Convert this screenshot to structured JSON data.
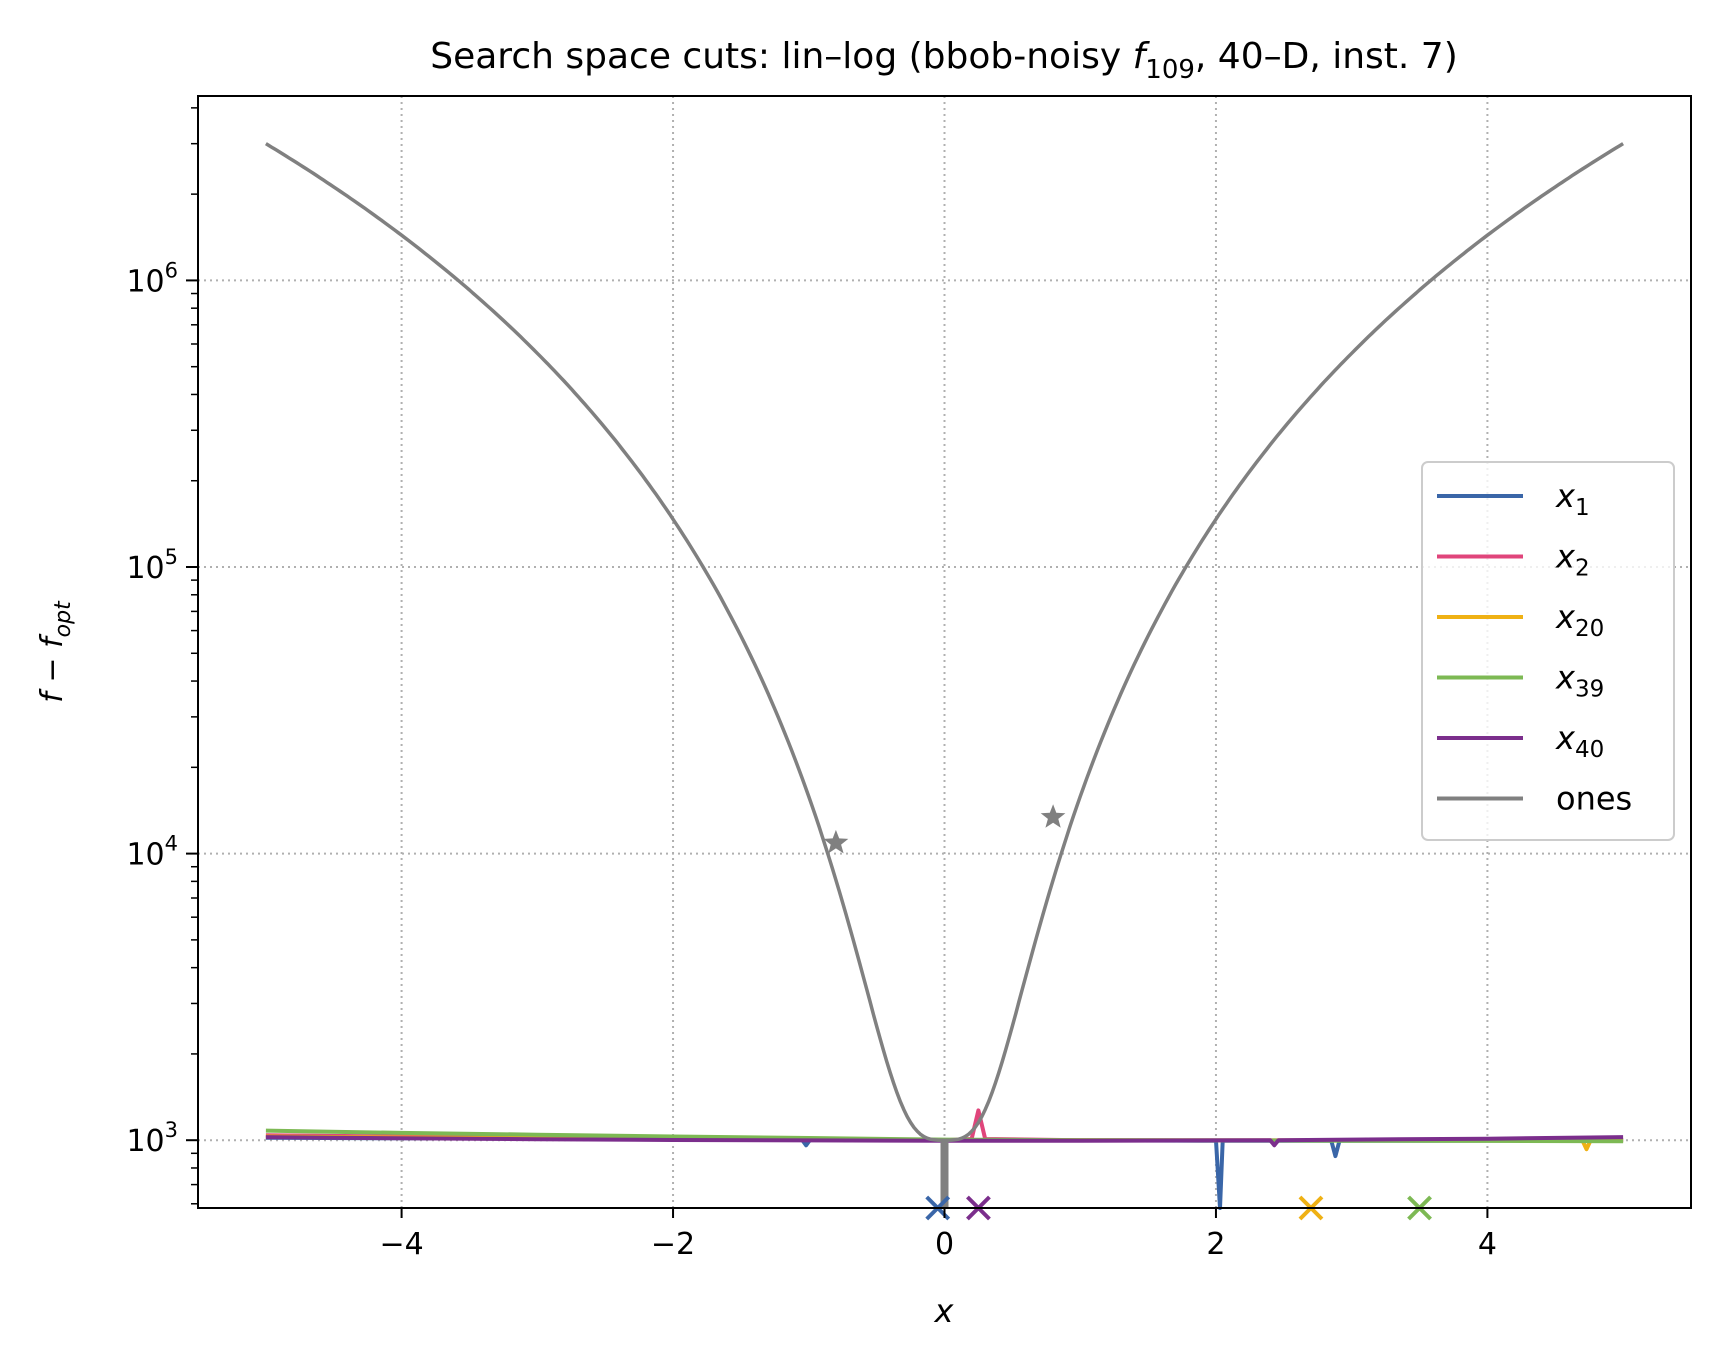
{
  "chart_data": {
    "type": "line",
    "title": "Search space cuts: lin–log (bbob-noisy f109, 40–D, inst. 7)",
    "title_parts": {
      "before": "Search space cuts: lin–log (bbob-noisy ",
      "f": "f",
      "sub": "109",
      "after": ", 40–D, inst. 7)"
    },
    "xlabel": "x",
    "ylabel": "f − f",
    "ylabel_sub": "opt",
    "xscale": "linear",
    "yscale": "log",
    "xlim": [
      -5.5,
      5.5
    ],
    "ylim": [
      580,
      4400000
    ],
    "grid": true,
    "legend_placement": "center-right",
    "x_ticks": [
      {
        "v": -4,
        "label": "−4"
      },
      {
        "v": -2,
        "label": "−2"
      },
      {
        "v": 0,
        "label": "0"
      },
      {
        "v": 2,
        "label": "2"
      },
      {
        "v": 4,
        "label": "4"
      }
    ],
    "y_ticks": [
      {
        "v": 1000,
        "base": "10",
        "exp": "3"
      },
      {
        "v": 10000,
        "base": "10",
        "exp": "4"
      },
      {
        "v": 100000,
        "base": "10",
        "exp": "5"
      },
      {
        "v": 1000000,
        "base": "10",
        "exp": "6"
      }
    ],
    "series": [
      {
        "name": "x",
        "sub": "1",
        "color": "#3a66a8",
        "points": [
          [
            -5,
            1020
          ],
          [
            -4,
            1015
          ],
          [
            -3,
            1012
          ],
          [
            -2,
            1008
          ],
          [
            -1.05,
            1004
          ],
          [
            -1.02,
            960
          ],
          [
            -0.99,
            1003
          ],
          [
            -0.5,
            1001
          ],
          [
            0,
            1000
          ],
          [
            0.5,
            999
          ],
          [
            1,
            998
          ],
          [
            1.9,
            996
          ],
          [
            2,
            996
          ],
          [
            2.03,
            580
          ],
          [
            2.05,
            996
          ],
          [
            2.85,
            996
          ],
          [
            2.88,
            880
          ],
          [
            2.91,
            996
          ],
          [
            3.5,
            996
          ],
          [
            4,
            997
          ],
          [
            4.5,
            998
          ],
          [
            5,
            999
          ]
        ]
      },
      {
        "name": "x",
        "sub": "2",
        "color": "#e0457b",
        "points": [
          [
            -5,
            1040
          ],
          [
            -4,
            1030
          ],
          [
            -3,
            1020
          ],
          [
            -2,
            1010
          ],
          [
            -1,
            1004
          ],
          [
            0,
            1000
          ],
          [
            0.2,
            1010
          ],
          [
            0.25,
            1270
          ],
          [
            0.3,
            1010
          ],
          [
            1,
            1000
          ],
          [
            2,
            998
          ],
          [
            3,
            998
          ],
          [
            4,
            999
          ],
          [
            5,
            1000
          ]
        ]
      },
      {
        "name": "x",
        "sub": "20",
        "color": "#efb114",
        "points": [
          [
            -5,
            1030
          ],
          [
            -4,
            1022
          ],
          [
            -3,
            1015
          ],
          [
            -2,
            1008
          ],
          [
            -1,
            1004
          ],
          [
            0,
            1000
          ],
          [
            1,
            999
          ],
          [
            2,
            998
          ],
          [
            2.5,
            998
          ],
          [
            3,
            998
          ],
          [
            4,
            998
          ],
          [
            4.7,
            998
          ],
          [
            4.73,
            930
          ],
          [
            4.76,
            998
          ],
          [
            5,
            998
          ]
        ]
      },
      {
        "name": "x",
        "sub": "39",
        "color": "#7db954",
        "points": [
          [
            -5,
            1080
          ],
          [
            -4,
            1060
          ],
          [
            -3,
            1045
          ],
          [
            -2,
            1030
          ],
          [
            -1,
            1018
          ],
          [
            0,
            1005
          ],
          [
            1,
            1000
          ],
          [
            2,
            998
          ],
          [
            3,
            996
          ],
          [
            4,
            994
          ],
          [
            5,
            992
          ]
        ]
      },
      {
        "name": "x",
        "sub": "40",
        "color": "#7b2e8c",
        "points": [
          [
            -5,
            1025
          ],
          [
            -4,
            1015
          ],
          [
            -3,
            1008
          ],
          [
            -2,
            1002
          ],
          [
            -1,
            998
          ],
          [
            0,
            996
          ],
          [
            1,
            995
          ],
          [
            2,
            998
          ],
          [
            2.4,
            1000
          ],
          [
            2.43,
            960
          ],
          [
            2.46,
            1000
          ],
          [
            3,
            1005
          ],
          [
            4,
            1012
          ],
          [
            5,
            1025
          ]
        ]
      },
      {
        "name": "ones",
        "sub": "",
        "color": "#808080",
        "kind": "curve",
        "A": 1000,
        "B": 3000000
      }
    ],
    "markers_x": [
      {
        "x": -0.05,
        "color": "#3a66a8"
      },
      {
        "x": 0.25,
        "color": "#7b2e8c"
      },
      {
        "x": 2.7,
        "color": "#efb114"
      },
      {
        "x": 3.5,
        "color": "#7db954"
      }
    ],
    "stars": [
      {
        "x": -0.8,
        "y": 10900,
        "color": "#808080"
      },
      {
        "x": 0.8,
        "y": 13400,
        "color": "#808080"
      }
    ]
  }
}
